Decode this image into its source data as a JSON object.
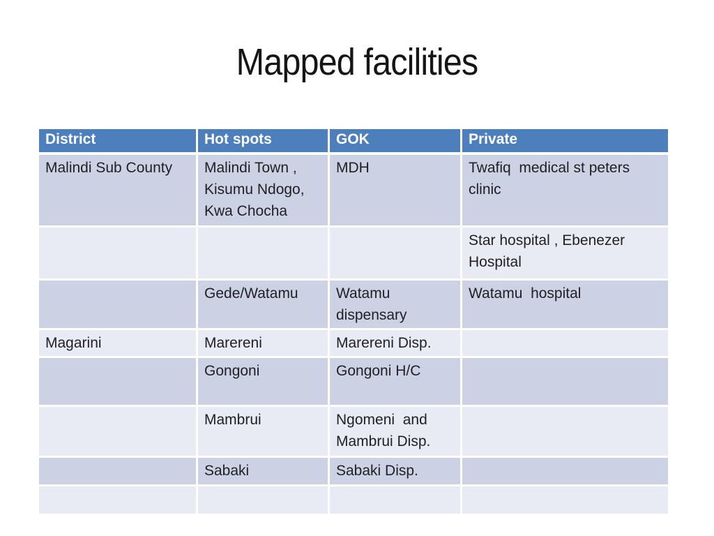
{
  "slide": {
    "title": "Mapped facilities"
  },
  "colors": {
    "header_bg": "#4d7fbd",
    "header_text": "#ffffff",
    "row_band_dark": "#ccd2e4",
    "row_band_light": "#e9ebf4",
    "body_text": "#1f1f24",
    "gridline": "#ffffff",
    "title_text": "#151515"
  },
  "table": {
    "columns": [
      "District",
      "Hot spots",
      "GOK",
      "Private"
    ],
    "rows": [
      {
        "cells": [
          "Malindi Sub County",
          "Malindi Town , Kisumu Ndogo, Kwa Chocha",
          "MDH",
          "Twafiq  medical st peters clinic"
        ]
      },
      {
        "cells": [
          "",
          "",
          "",
          "Star hospital , Ebenezer Hospital"
        ]
      },
      {
        "cells": [
          "",
          "Gede/Watamu",
          "Watamu dispensary",
          "Watamu  hospital"
        ]
      },
      {
        "cells": [
          "Magarini",
          "Marereni",
          "Marereni Disp.",
          ""
        ]
      },
      {
        "cells": [
          "",
          "Gongoni",
          "Gongoni H/C",
          ""
        ]
      },
      {
        "cells": [
          "",
          "Mambrui",
          "Ngomeni  and Mambrui Disp.",
          ""
        ]
      },
      {
        "cells": [
          "",
          "Sabaki",
          "Sabaki Disp.",
          ""
        ]
      },
      {
        "cells": [
          "",
          "",
          "",
          ""
        ]
      }
    ]
  }
}
